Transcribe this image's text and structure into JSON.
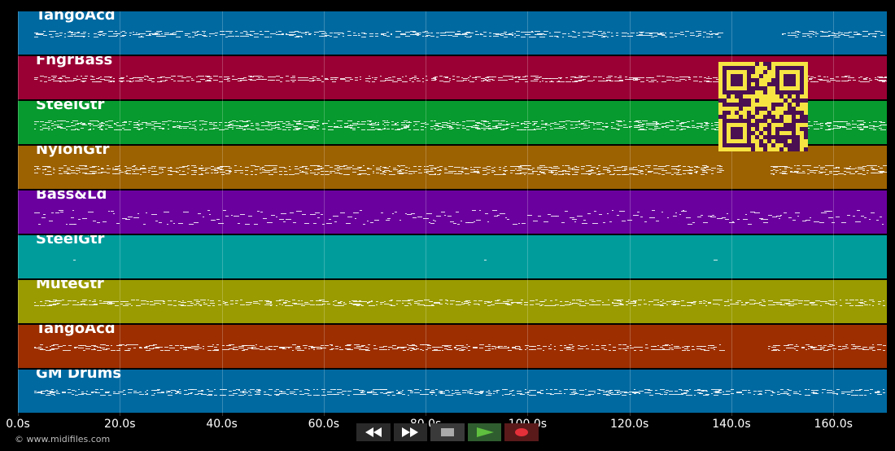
{
  "tracks": [
    {
      "name": "TangoAcd",
      "color": "#0069a0"
    },
    {
      "name": "FngrBass",
      "color": "#9a0034"
    },
    {
      "name": "SteelGtr",
      "color": "#079a2e"
    },
    {
      "name": "NylonGtr",
      "color": "#9c6100"
    },
    {
      "name": "Bass&Ld",
      "color": "#6a009e"
    },
    {
      "name": "SteelGtr",
      "color": "#009c9c"
    },
    {
      "name": "MuteGtr",
      "color": "#9a9b00"
    },
    {
      "name": "TangoAcd",
      "color": "#9c2e00"
    },
    {
      "name": "GM Drums",
      "color": "#0069a0"
    }
  ],
  "timeline": {
    "ticks": [
      "0.0s",
      "20.0s",
      "40.0s",
      "60.0s",
      "80.0s",
      "100.0s",
      "120.0s",
      "140.0s",
      "160.0s"
    ],
    "duration_s": 170.5
  },
  "qr": {
    "color": "#f6e443",
    "module_color": "#4a1052"
  },
  "controls": [
    {
      "name": "rewind",
      "icon": "rewind-icon",
      "color": "#2a2a2a"
    },
    {
      "name": "fast-forward",
      "icon": "fast-forward-icon",
      "color": "#2a2a2a"
    },
    {
      "name": "stop",
      "icon": "stop-icon",
      "color": "#3a3a3a"
    },
    {
      "name": "play",
      "icon": "play-icon",
      "color": "#2f5d2f"
    },
    {
      "name": "record",
      "icon": "record-icon",
      "color": "#5a1a1a"
    }
  ],
  "footer": {
    "copyright": "© www.midifiles.com"
  }
}
